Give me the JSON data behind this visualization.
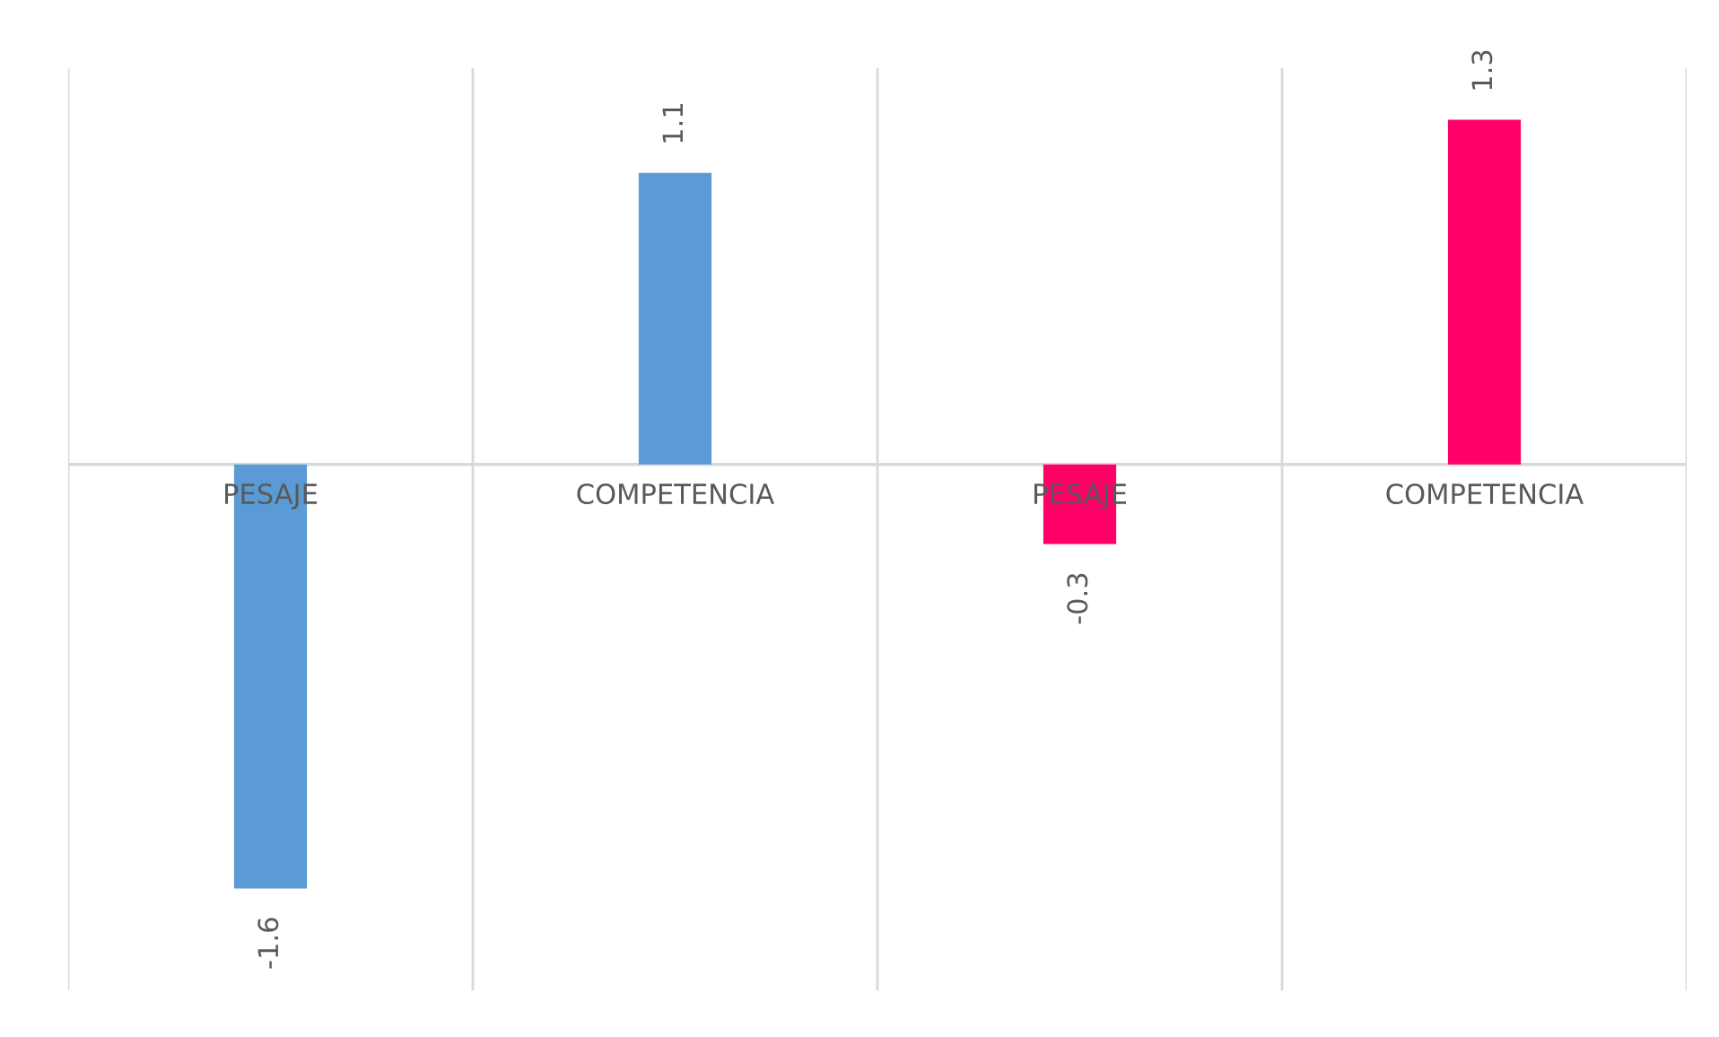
{
  "chart_data": {
    "type": "bar",
    "categories": [
      "PESAJE",
      "COMPETENCIA",
      "PESAJE",
      "COMPETENCIA"
    ],
    "values": [
      -1.6,
      1.1,
      -0.3,
      1.3
    ],
    "colors": [
      "#5b9bd5",
      "#5b9bd5",
      "#ff0066",
      "#ff0066"
    ],
    "data_labels": true,
    "grid": "x"
  }
}
